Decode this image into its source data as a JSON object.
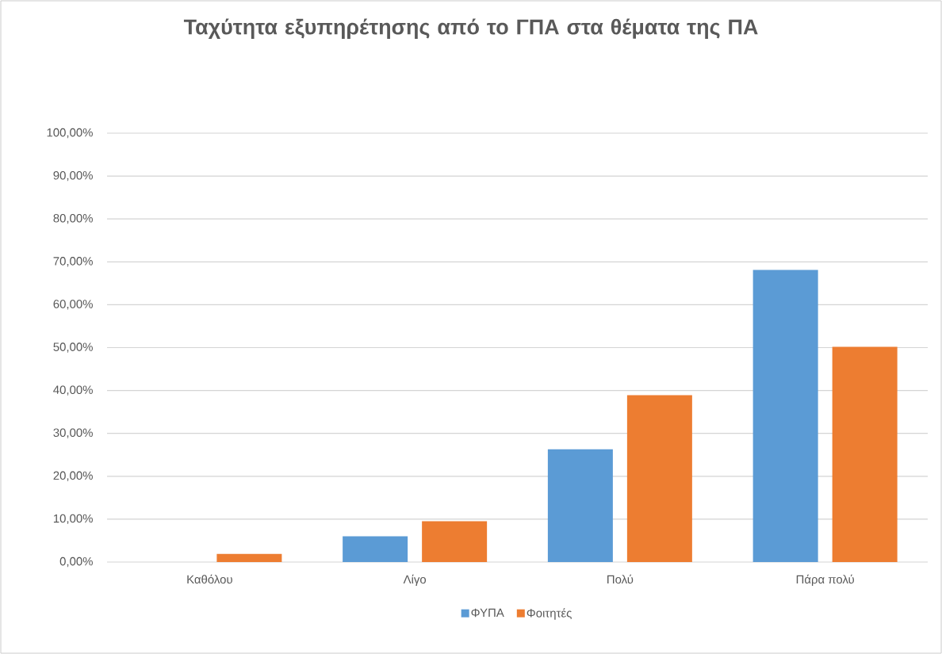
{
  "chart_data": {
    "type": "bar",
    "title": "Ταχύτητα εξυπηρέτησης από το ΓΠΑ στα θέματα της ΠΑ",
    "categories": [
      "Καθόλου",
      "Λίγο",
      "Πολύ",
      "Πάρα πολύ"
    ],
    "series": [
      {
        "name": "ΦΥΠΑ",
        "color": "#5b9bd5",
        "values": [
          0,
          6.0,
          26.3,
          68.1
        ]
      },
      {
        "name": "Φοιτητές",
        "color": "#ed7d31",
        "values": [
          1.9,
          9.5,
          38.9,
          50.2
        ]
      }
    ],
    "ylim": [
      0,
      100
    ],
    "yticks": [
      {
        "value": 0,
        "label": "0,00%"
      },
      {
        "value": 10,
        "label": "10,00%"
      },
      {
        "value": 20,
        "label": "20,00%"
      },
      {
        "value": 30,
        "label": "30,00%"
      },
      {
        "value": 40,
        "label": "40,00%"
      },
      {
        "value": 50,
        "label": "50,00%"
      },
      {
        "value": 60,
        "label": "60,00%"
      },
      {
        "value": 70,
        "label": "70,00%"
      },
      {
        "value": 80,
        "label": "80,00%"
      },
      {
        "value": 90,
        "label": "90,00%"
      },
      {
        "value": 100,
        "label": "100,00%"
      }
    ],
    "grid": "y",
    "legend": "bottom"
  }
}
